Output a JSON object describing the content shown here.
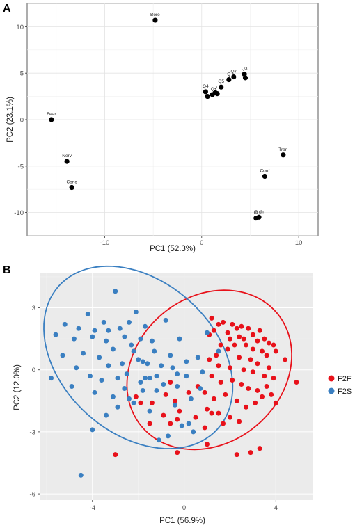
{
  "panels": {
    "a_letter": "A",
    "b_letter": "B"
  },
  "chart_data": [
    {
      "type": "scatter",
      "panel": "A",
      "title": "",
      "xlabel": "PC1 (52.3%)",
      "ylabel": "PC2 (23.1%)",
      "xlim": [
        -18,
        12
      ],
      "ylim": [
        -12.5,
        12.5
      ],
      "xticks": [
        -10,
        0,
        10
      ],
      "yticks": [
        -10,
        -5,
        0,
        5,
        10
      ],
      "grid": "major and minor, light grey",
      "color": "#000000",
      "points": [
        {
          "label": "Bore",
          "x": -4.8,
          "y": 10.7
        },
        {
          "label": "Fear",
          "x": -15.5,
          "y": 0.0
        },
        {
          "label": "Nerv",
          "x": -13.9,
          "y": -4.5
        },
        {
          "label": "Conc",
          "x": -13.4,
          "y": -7.3
        },
        {
          "label": "Tran",
          "x": 8.4,
          "y": -3.8
        },
        {
          "label": "Conf",
          "x": 6.5,
          "y": -6.1
        },
        {
          "label": "Fr",
          "x": 5.6,
          "y": -10.6
        },
        {
          "label": "Enth",
          "x": 5.9,
          "y": -10.5
        },
        {
          "label": "Q4",
          "x": 0.4,
          "y": 3.0
        },
        {
          "label": "",
          "x": 0.6,
          "y": 2.5
        },
        {
          "label": "Q",
          "x": 1.1,
          "y": 2.7
        },
        {
          "label": "Q",
          "x": 1.4,
          "y": 2.9
        },
        {
          "label": "",
          "x": 1.6,
          "y": 2.8
        },
        {
          "label": "Q5",
          "x": 2.0,
          "y": 3.5
        },
        {
          "label": "Q",
          "x": 2.8,
          "y": 4.3
        },
        {
          "label": "Q7",
          "x": 3.3,
          "y": 4.6
        },
        {
          "label": "Q3",
          "x": 4.4,
          "y": 4.9
        },
        {
          "label": "",
          "x": 4.5,
          "y": 4.5
        }
      ]
    },
    {
      "type": "scatter",
      "panel": "B",
      "title": "",
      "xlabel": "PC1 (56.9%)",
      "ylabel": "PC2 (12.0%)",
      "xlim": [
        -6.3,
        5.6
      ],
      "ylim": [
        -6.3,
        4.7
      ],
      "xticks": [
        -4,
        0,
        4
      ],
      "yticks": [
        -6,
        -3,
        0,
        3
      ],
      "grid": "major and minor, white on grey background",
      "legend_position": "right",
      "series": [
        {
          "name": "F2F",
          "color": "#e8111a",
          "ellipse": {
            "cx": 1.1,
            "cy": 0.0,
            "rx": 4.05,
            "ry": 3.35,
            "angle_deg": 40
          },
          "points": [
            [
              1.2,
              2.5
            ],
            [
              1.5,
              2.2
            ],
            [
              1.3,
              1.9
            ],
            [
              1.7,
              2.3
            ],
            [
              1.1,
              1.7
            ],
            [
              1.9,
              1.8
            ],
            [
              2.1,
              2.2
            ],
            [
              2.3,
              2.0
            ],
            [
              2.5,
              2.1
            ],
            [
              2.0,
              1.5
            ],
            [
              2.4,
              1.6
            ],
            [
              2.6,
              1.5
            ],
            [
              2.8,
              2.0
            ],
            [
              3.0,
              1.7
            ],
            [
              3.2,
              1.4
            ],
            [
              3.3,
              1.9
            ],
            [
              3.5,
              1.5
            ],
            [
              3.7,
              1.3
            ],
            [
              3.9,
              1.2
            ],
            [
              2.2,
              1.2
            ],
            [
              2.7,
              1.2
            ],
            [
              3.0,
              1.0
            ],
            [
              3.4,
              0.9
            ],
            [
              3.6,
              0.7
            ],
            [
              4.0,
              0.9
            ],
            [
              1.6,
              1.2
            ],
            [
              1.9,
              1.0
            ],
            [
              1.4,
              0.7
            ],
            [
              2.4,
              0.6
            ],
            [
              2.9,
              0.5
            ],
            [
              3.2,
              0.3
            ],
            [
              3.7,
              0.1
            ],
            [
              4.4,
              0.5
            ],
            [
              1.1,
              0.5
            ],
            [
              1.5,
              0.2
            ],
            [
              2.0,
              0.1
            ],
            [
              2.6,
              0.0
            ],
            [
              3.0,
              -0.1
            ],
            [
              3.5,
              -0.3
            ],
            [
              3.9,
              -0.4
            ],
            [
              4.9,
              -0.6
            ],
            [
              1.2,
              -0.3
            ],
            [
              1.6,
              -0.6
            ],
            [
              2.1,
              -0.5
            ],
            [
              2.5,
              -0.7
            ],
            [
              2.8,
              -0.9
            ],
            [
              3.2,
              -1.0
            ],
            [
              3.6,
              -0.8
            ],
            [
              3.8,
              -1.2
            ],
            [
              4.0,
              -1.6
            ],
            [
              0.6,
              -0.8
            ],
            [
              0.9,
              -1.1
            ],
            [
              1.3,
              -1.4
            ],
            [
              1.8,
              -1.2
            ],
            [
              2.3,
              -1.5
            ],
            [
              2.7,
              -1.8
            ],
            [
              3.1,
              -1.6
            ],
            [
              3.4,
              -1.3
            ],
            [
              1.0,
              -1.9
            ],
            [
              1.5,
              -2.1
            ],
            [
              2.0,
              -2.3
            ],
            [
              2.4,
              -2.5
            ],
            [
              -2.1,
              -1.3
            ],
            [
              -1.9,
              -1.6
            ],
            [
              -1.4,
              -1.6
            ],
            [
              -0.8,
              -1.2
            ],
            [
              -0.4,
              -1.5
            ],
            [
              -0.2,
              -2.0
            ],
            [
              -0.9,
              -2.2
            ],
            [
              -1.5,
              -2.6
            ],
            [
              -0.6,
              -2.6
            ],
            [
              0.5,
              -2.3
            ],
            [
              0.9,
              -2.8
            ],
            [
              1.7,
              -2.6
            ],
            [
              1.2,
              -2.1
            ],
            [
              -0.3,
              -2.4
            ],
            [
              0.2,
              -1.1
            ],
            [
              -0.6,
              -0.6
            ],
            [
              -3.0,
              -4.1
            ],
            [
              1.0,
              -3.6
            ],
            [
              -0.3,
              -4.0
            ],
            [
              2.3,
              -4.1
            ],
            [
              2.9,
              -4.0
            ],
            [
              3.3,
              -3.8
            ]
          ]
        },
        {
          "name": "F2S",
          "color": "#3a7fc1",
          "ellipse": {
            "cx": -2.0,
            "cy": 0.6,
            "rx": 4.9,
            "ry": 3.5,
            "angle_deg": -42
          },
          "points": [
            [
              -3.0,
              3.8
            ],
            [
              -2.1,
              2.8
            ],
            [
              -4.2,
              2.7
            ],
            [
              -3.5,
              2.3
            ],
            [
              -0.8,
              2.4
            ],
            [
              -5.2,
              2.2
            ],
            [
              -4.6,
              2.0
            ],
            [
              -3.9,
              1.9
            ],
            [
              -2.8,
              2.0
            ],
            [
              -1.7,
              2.1
            ],
            [
              -5.6,
              1.7
            ],
            [
              -4.8,
              1.5
            ],
            [
              -4.0,
              1.6
            ],
            [
              -3.4,
              1.4
            ],
            [
              -2.6,
              1.6
            ],
            [
              -1.9,
              1.5
            ],
            [
              -2.3,
              1.2
            ],
            [
              -3.1,
              1.0
            ],
            [
              -5.3,
              0.7
            ],
            [
              -4.4,
              0.8
            ],
            [
              -3.7,
              0.6
            ],
            [
              -2.2,
              0.9
            ],
            [
              -2.0,
              0.5
            ],
            [
              -1.6,
              0.3
            ],
            [
              -1.3,
              0.9
            ],
            [
              -3.3,
              0.2
            ],
            [
              -4.7,
              0.1
            ],
            [
              -4.1,
              -0.3
            ],
            [
              -3.6,
              -0.5
            ],
            [
              -2.9,
              -0.4
            ],
            [
              -2.5,
              -0.2
            ],
            [
              -1.9,
              -0.6
            ],
            [
              -1.5,
              -0.4
            ],
            [
              -5.8,
              -0.4
            ],
            [
              -4.9,
              -0.8
            ],
            [
              -3.9,
              -1.1
            ],
            [
              -3.1,
              -1.3
            ],
            [
              -2.6,
              -0.9
            ],
            [
              -2.9,
              -1.8
            ],
            [
              -3.4,
              -2.2
            ],
            [
              -1.8,
              -1.0
            ],
            [
              -1.2,
              -0.3
            ],
            [
              -0.5,
              0.1
            ],
            [
              0.1,
              0.4
            ],
            [
              0.6,
              0.6
            ],
            [
              -1.7,
              -0.4
            ],
            [
              -1.2,
              -1.0
            ],
            [
              -0.3,
              -0.8
            ],
            [
              0.3,
              -1.4
            ],
            [
              -2.4,
              -1.4
            ],
            [
              -1.5,
              -2.0
            ],
            [
              0.8,
              -0.1
            ],
            [
              1.5,
              0.9
            ],
            [
              0.2,
              -2.6
            ],
            [
              -0.1,
              -2.7
            ],
            [
              -4.0,
              -2.9
            ],
            [
              -4.5,
              -5.1
            ],
            [
              -0.7,
              -3.2
            ],
            [
              -1.1,
              -3.4
            ],
            [
              0.4,
              -3.0
            ],
            [
              -0.6,
              0.7
            ],
            [
              -1.0,
              0.2
            ],
            [
              -0.3,
              -0.2
            ],
            [
              -2.7,
              0.3
            ],
            [
              -2.2,
              -1.6
            ],
            [
              -1.4,
              1.4
            ],
            [
              -0.9,
              -0.7
            ],
            [
              0.1,
              -0.3
            ],
            [
              -0.4,
              -1.7
            ],
            [
              -1.8,
              0.4
            ],
            [
              -3.3,
              1.9
            ],
            [
              -2.4,
              2.3
            ],
            [
              1.0,
              1.8
            ],
            [
              0.7,
              -0.9
            ],
            [
              -0.2,
              1.5
            ]
          ]
        }
      ]
    }
  ]
}
